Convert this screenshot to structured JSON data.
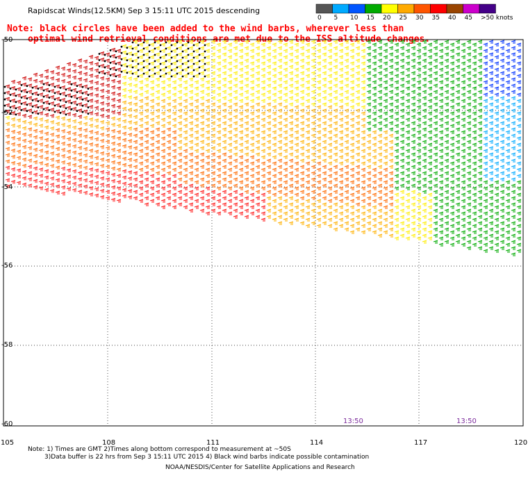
{
  "title": "Rapidscat Winds(12.5KM) Sep  3 15:11 UTC 2015 descending",
  "note_line1": "Note: black circles have been added to the wind barbs, wherever less than",
  "note_line2": "optimal wind retrieval conditions are met due to the ISS altitude changes.",
  "colorbar": {
    "labels": [
      "0",
      "5",
      "10",
      "15",
      "20",
      "25",
      "30",
      "35",
      "40",
      "45",
      ">50 knots"
    ],
    "colors": [
      "#555555",
      "#00aaff",
      "#0055ff",
      "#00aa00",
      "#ffff00",
      "#ffaa00",
      "#ff5500",
      "#ff0000",
      "#994400",
      "#cc00cc",
      "#440088"
    ]
  },
  "lat_labels": [
    "-50",
    "-52",
    "-54",
    "-56",
    "-58",
    "-60"
  ],
  "lon_labels": [
    "105",
    "108",
    "111",
    "114",
    "117",
    "120"
  ],
  "time_labels": [
    "13:50",
    "13:50"
  ],
  "footer": {
    "line1": "Note: 1) Times are GMT 2)Times along bottom correspond to measurement at ~50S",
    "line2": "3)Data buffer is 22 hrs from Sep  3 15:11 UTC 2015 4) Black wind barbs indicate possible contamination",
    "line3": "NOAA/NESDIS/Center for Satellite Applications and Research"
  },
  "barb_colors": {
    "black": "#000000",
    "yellow": "#ffee00",
    "gold": "#ffb000",
    "orange": "#ff6a00",
    "red": "#ff1a1a",
    "darkred": "#cc0000",
    "green": "#00aa00",
    "blue": "#0033ff",
    "cyan": "#00aaff"
  }
}
